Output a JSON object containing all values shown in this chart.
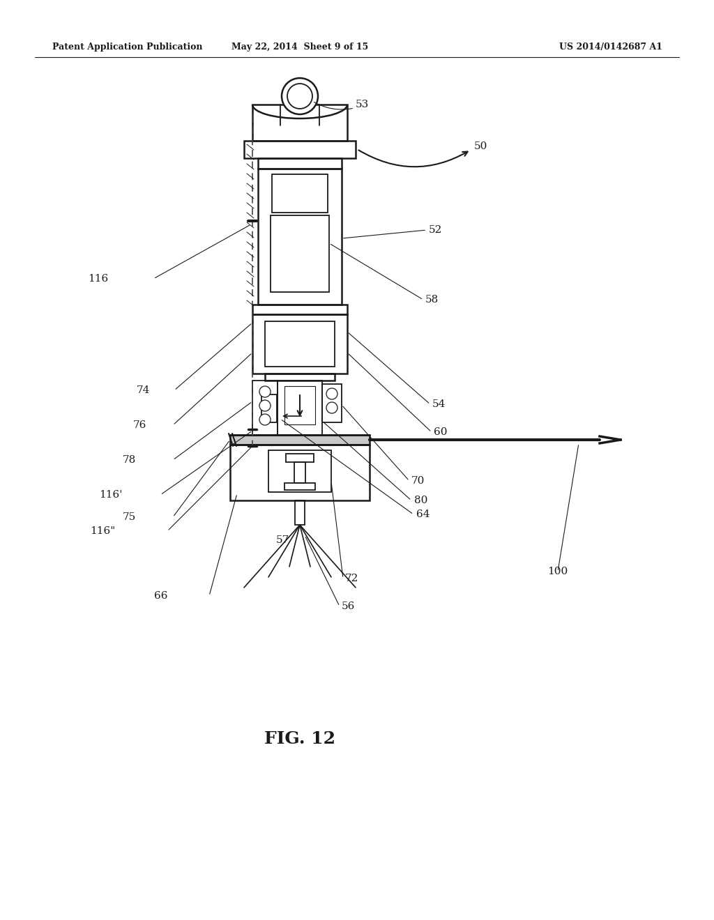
{
  "bg_color": "#ffffff",
  "header_left": "Patent Application Publication",
  "header_center": "May 22, 2014  Sheet 9 of 15",
  "header_right": "US 2014/0142687 A1",
  "fig_label": "FIG. 12",
  "dark": "#1a1a1a"
}
